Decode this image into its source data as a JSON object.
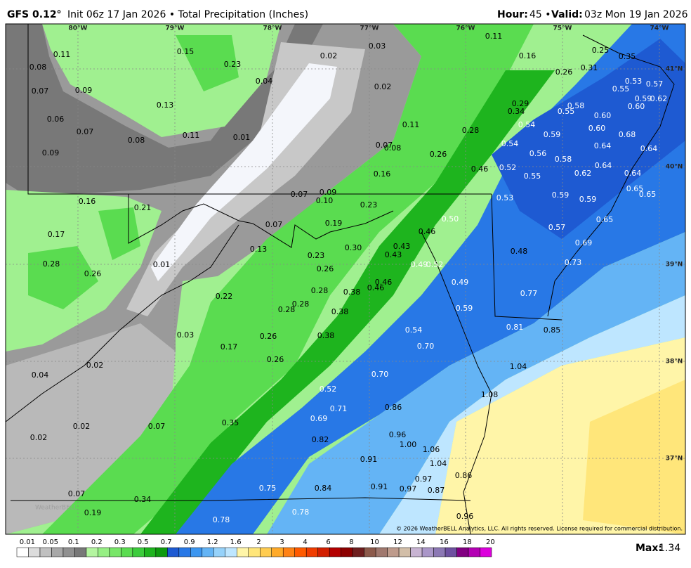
{
  "header": {
    "model": "GFS 0.12°",
    "info": "Init 06z 17 Jan 2026 • Total Precipitation (Inches)",
    "hour_label": "Hour:",
    "hour_value": "45 •",
    "valid_label": "Valid:",
    "valid_value": "03z Mon 19 Jan 2026"
  },
  "map": {
    "longitudes": [
      "80°W",
      "79°W",
      "78°W",
      "77°W",
      "76°W",
      "75°W",
      "74°W"
    ],
    "latitudes": [
      "41°N",
      "40°N",
      "39°N",
      "38°N",
      "37°N"
    ],
    "labels": [
      "0.11",
      "0.15",
      "0.23",
      "0.02",
      "0.03",
      "0.11",
      "0.16",
      "0.25",
      "0.35",
      "0.08",
      "0.07",
      "0.09",
      "0.13",
      "0.04",
      "0.02",
      "0.26",
      "0.31",
      "0.53",
      "0.57",
      "0.55",
      "0.06",
      "0.07",
      "0.08",
      "0.11",
      "0.01",
      "0.11",
      "0.29",
      "0.34",
      "0.28",
      "0.58",
      "0.55",
      "0.60",
      "0.59",
      "0.62",
      "0.60",
      "0.09",
      "0.07",
      "0.08",
      "0.26",
      "0.54",
      "0.59",
      "0.60",
      "0.68",
      "0.54",
      "0.56",
      "0.58",
      "0.64",
      "0.64",
      "0.16",
      "0.46",
      "0.52",
      "0.55",
      "0.62",
      "0.64",
      "0.64",
      "0.07",
      "0.09",
      "0.10",
      "0.16",
      "0.21",
      "0.23",
      "0.53",
      "0.59",
      "0.59",
      "0.65",
      "0.65",
      "0.17",
      "0.07",
      "0.19",
      "0.50",
      "0.46",
      "0.57",
      "0.65",
      "0.13",
      "0.30",
      "0.43",
      "0.43",
      "0.48",
      "0.69",
      "0.23",
      "0.28",
      "0.01",
      "0.49",
      "0.52",
      "0.73",
      "0.26",
      "0.26",
      "0.46",
      "0.46",
      "0.49",
      "0.28",
      "0.38",
      "0.22",
      "0.77",
      "0.28",
      "0.28",
      "0.38",
      "0.59",
      "0.81",
      "0.85",
      "0.54",
      "0.03",
      "0.26",
      "0.38",
      "0.17",
      "0.70",
      "0.02",
      "0.26",
      "1.04",
      "0.04",
      "0.70",
      "0.52",
      "1.08",
      "0.71",
      "0.86",
      "0.69",
      "0.35",
      "0.02",
      "0.07",
      "0.96",
      "0.02",
      "0.82",
      "1.00",
      "1.06",
      "0.91",
      "1.04",
      "0.97",
      "0.86",
      "0.75",
      "0.84",
      "0.91",
      "0.97",
      "0.87",
      "0.07",
      "0.34",
      "0.19",
      "0.78",
      "0.96",
      "0.78"
    ],
    "watermark": "WeatherBELL",
    "copyright": "© 2026 WeatherBELL Analytics, LLC. All rights reserved. License required for commercial distribution."
  },
  "colorbar": {
    "labels": [
      "0.01",
      "0.05",
      "0.1",
      "0.2",
      "0.3",
      "0.5",
      "0.7",
      "0.9",
      "1.2",
      "1.6",
      "2",
      "3",
      "4",
      "6",
      "8",
      "10",
      "12",
      "14",
      "16",
      "18",
      "20"
    ],
    "colors": [
      "#ffffff",
      "#dcdcdc",
      "#c0c0c0",
      "#a8a8a8",
      "#909090",
      "#787878",
      "#b4f5a0",
      "#96ef84",
      "#78e668",
      "#5adc50",
      "#3ccc3c",
      "#1eb41e",
      "#0e9a0e",
      "#1e5ad2",
      "#2878e6",
      "#3c96f0",
      "#64b4f5",
      "#96d2fa",
      "#bee6ff",
      "#fff5a8",
      "#ffe67a",
      "#ffcc50",
      "#ffaa28",
      "#ff8214",
      "#ff5a00",
      "#f03c00",
      "#d21e00",
      "#b40000",
      "#8c0000",
      "#6e1e1e",
      "#8c5a4b",
      "#a0786e",
      "#be9b8c",
      "#d2bea8",
      "#c8b4d2",
      "#aa96c8",
      "#8c78b4",
      "#6e50a0",
      "#820082",
      "#b400b4",
      "#dc00dc"
    ]
  },
  "footer": {
    "max_label": "Max:",
    "max_value": "1.34"
  }
}
